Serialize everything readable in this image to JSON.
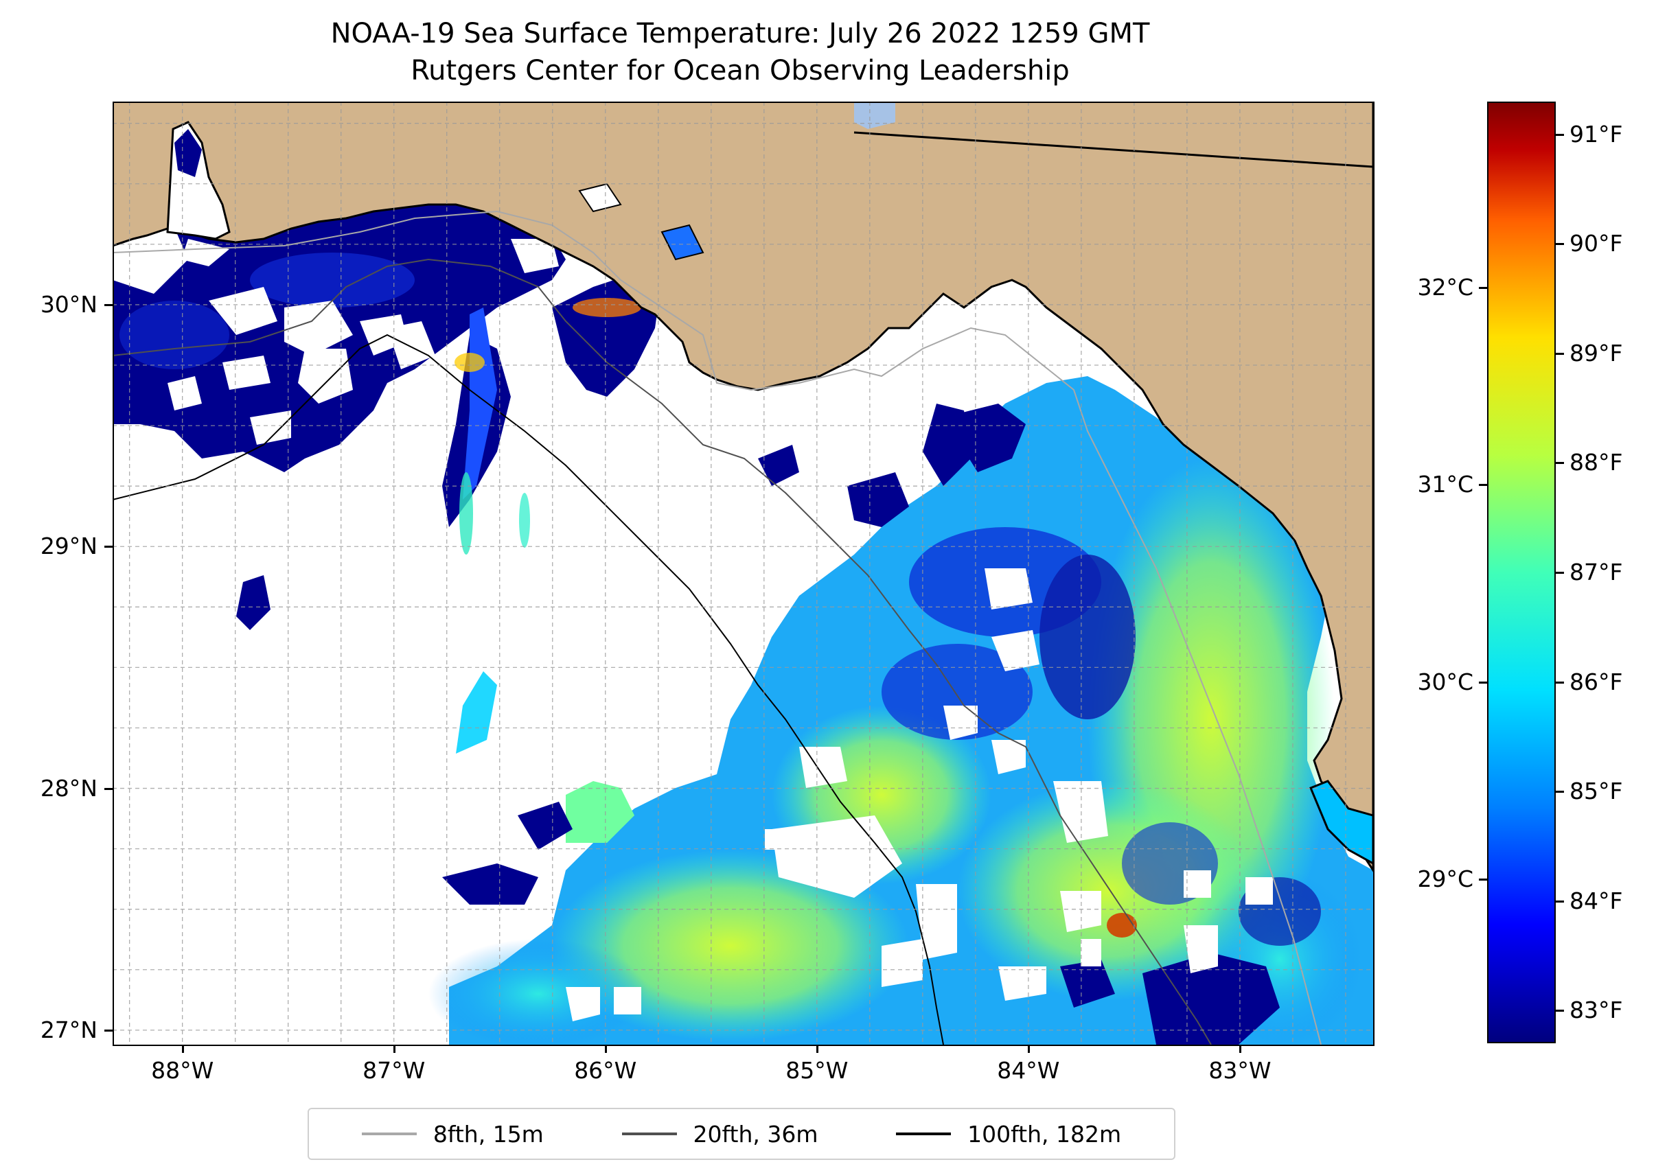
{
  "title": {
    "line1": "NOAA-19 Sea Surface Temperature: July 26 2022 1259 GMT",
    "line2": "Rutgers Center for Ocean Observing Leadership"
  },
  "map": {
    "lon_range": [
      -88.33,
      -82.37
    ],
    "lat_range": [
      26.94,
      30.84
    ],
    "lat_ticks": [
      {
        "value": 30,
        "label": "30°N"
      },
      {
        "value": 29,
        "label": "29°N"
      },
      {
        "value": 28,
        "label": "28°N"
      },
      {
        "value": 27,
        "label": "27°N"
      }
    ],
    "lon_ticks": [
      {
        "value": -88,
        "label": "88°W"
      },
      {
        "value": -87,
        "label": "87°W"
      },
      {
        "value": -86,
        "label": "86°W"
      },
      {
        "value": -85,
        "label": "85°W"
      },
      {
        "value": -84,
        "label": "84°W"
      },
      {
        "value": -83,
        "label": "83°W"
      }
    ],
    "colors": {
      "land": "#d2b48c",
      "lake": "#a6c2e6",
      "grid": "#9a9a9a",
      "cloud": "#ffffff"
    }
  },
  "legend": {
    "items": [
      {
        "label": "8fth, 15m",
        "color": "#a8a8a8"
      },
      {
        "label": "20fth, 36m",
        "color": "#505050"
      },
      {
        "label": "100fth, 182m",
        "color": "#000000"
      }
    ]
  },
  "colorbar": {
    "celsius_ticks": [
      {
        "value": 32,
        "label": "32°C"
      },
      {
        "value": 31,
        "label": "31°C"
      },
      {
        "value": 30,
        "label": "30°C"
      },
      {
        "value": 29,
        "label": "29°C"
      }
    ],
    "fahrenheit_ticks": [
      {
        "value": 91,
        "label": "91°F"
      },
      {
        "value": 90,
        "label": "90°F"
      },
      {
        "value": 89,
        "label": "89°F"
      },
      {
        "value": 88,
        "label": "88°F"
      },
      {
        "value": 87,
        "label": "87°F"
      },
      {
        "value": 86,
        "label": "86°F"
      },
      {
        "value": 85,
        "label": "85°F"
      },
      {
        "value": 84,
        "label": "84°F"
      },
      {
        "value": 83,
        "label": "83°F"
      }
    ],
    "f_range": [
      82.7,
      91.3
    ]
  }
}
